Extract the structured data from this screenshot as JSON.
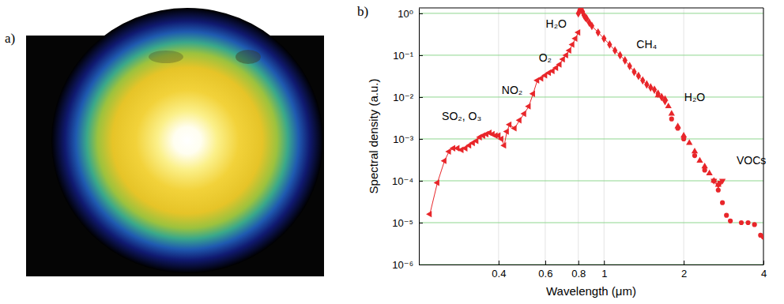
{
  "image_panel": {
    "label": "a)"
  },
  "chart_data": {
    "type": "scatter",
    "panel_label": "b)",
    "x_label": "Wavelength (μm)",
    "y_label": "Spectral density (a.u.)",
    "log": true,
    "grid": true,
    "xlim": [
      0.2,
      4
    ],
    "xticks": [
      0.4,
      0.6,
      0.8,
      1,
      2,
      4
    ],
    "ylim": [
      1e-06,
      1.35
    ],
    "yticks": [
      {
        "value": 1e-06,
        "label": "10⁻⁶"
      },
      {
        "value": 1e-05,
        "label": "10⁻⁵"
      },
      {
        "value": 0.0001,
        "label": "10⁻⁴"
      },
      {
        "value": 0.001,
        "label": "10⁻³"
      },
      {
        "value": 0.01,
        "label": "10⁻²"
      },
      {
        "value": 0.1,
        "label": "10⁻¹"
      },
      {
        "value": 1,
        "label": "10⁰"
      }
    ],
    "series": [
      {
        "color": "#e8262a",
        "marker": "triangle-left",
        "line_style": "solid",
        "x": [
          0.22,
          0.235,
          0.25,
          0.26,
          0.27,
          0.28,
          0.29,
          0.3,
          0.31,
          0.32,
          0.33,
          0.34,
          0.35,
          0.36,
          0.37,
          0.38,
          0.39,
          0.4,
          0.41,
          0.42,
          0.43,
          0.44,
          0.46,
          0.48,
          0.5,
          0.52,
          0.54,
          0.56,
          0.58,
          0.6,
          0.62,
          0.64,
          0.66,
          0.68,
          0.7,
          0.72,
          0.74,
          0.76,
          0.78,
          0.8
        ],
        "values": [
          1.6e-05,
          9e-05,
          0.0003,
          0.0005,
          0.0006,
          0.0006,
          0.00055,
          0.0006,
          0.0007,
          0.0008,
          0.0009,
          0.0011,
          0.0012,
          0.0013,
          0.0014,
          0.0013,
          0.0012,
          0.0012,
          0.001,
          0.0007,
          0.0015,
          0.0022,
          0.0018,
          0.0028,
          0.004,
          0.006,
          0.012,
          0.025,
          0.028,
          0.033,
          0.038,
          0.042,
          0.05,
          0.06,
          0.08,
          0.1,
          0.13,
          0.18,
          0.25,
          0.35
        ]
      },
      {
        "color": "#e8262a",
        "marker": "diamond",
        "line_style": "solid",
        "x": [
          0.8,
          0.81,
          0.82,
          0.83,
          0.84,
          0.85,
          0.86,
          0.88,
          0.9,
          0.95,
          1.0,
          1.05,
          1.1,
          1.15,
          1.2,
          1.25,
          1.3,
          1.35,
          1.4,
          1.45,
          1.5,
          1.55,
          1.6,
          1.65,
          1.7
        ],
        "values": [
          1.0,
          1.2,
          1.3,
          1.1,
          0.9,
          0.8,
          0.75,
          0.6,
          0.5,
          0.35,
          0.25,
          0.18,
          0.13,
          0.1,
          0.075,
          0.055,
          0.04,
          0.032,
          0.025,
          0.02,
          0.017,
          0.015,
          0.012,
          0.01,
          0.008
        ]
      },
      {
        "color": "#e8262a",
        "marker": "triangle-up",
        "x": [
          1.6,
          1.7,
          1.75,
          1.8,
          1.9,
          2.0,
          2.1,
          2.2,
          2.3,
          2.4,
          2.5,
          2.6,
          2.7
        ],
        "values": [
          0.011,
          0.009,
          0.006,
          0.004,
          0.002,
          0.0012,
          0.0008,
          0.0005,
          0.0003,
          0.00022,
          0.00015,
          0.0001,
          8e-05
        ]
      },
      {
        "color": "#e8262a",
        "marker": "circle",
        "x": [
          1.8,
          1.9,
          2.0,
          2.2,
          2.4,
          2.6,
          2.7,
          2.8,
          2.9,
          3.0,
          3.3,
          3.5,
          3.7,
          3.9,
          4.0
        ],
        "values": [
          0.003,
          0.0018,
          0.001,
          0.0004,
          0.00018,
          0.0001,
          6e-05,
          3e-05,
          1.5e-05,
          1.1e-05,
          1e-05,
          1e-05,
          9e-06,
          5e-06,
          4.5e-06
        ]
      },
      {
        "color": "#e8262a",
        "marker": "triangle-down",
        "x": [
          2.6,
          2.7,
          2.75,
          2.8
        ],
        "values": [
          0.0001,
          8e-05,
          9e-05,
          0.0001
        ]
      }
    ],
    "annotations": [
      {
        "text": "SO₂, O₃",
        "x": 0.29,
        "y": 0.0028
      },
      {
        "text": "NO₂",
        "x": 0.45,
        "y": 0.012
      },
      {
        "text": "O₂",
        "x": 0.6,
        "y": 0.07
      },
      {
        "text": "H₂O",
        "x": 0.66,
        "y": 0.45
      },
      {
        "text": "CH₄",
        "x": 1.45,
        "y": 0.15
      },
      {
        "text": "H₂O",
        "x": 2.2,
        "y": 0.008
      },
      {
        "text": "VOCs",
        "x": 3.6,
        "y": 0.00025
      }
    ]
  }
}
